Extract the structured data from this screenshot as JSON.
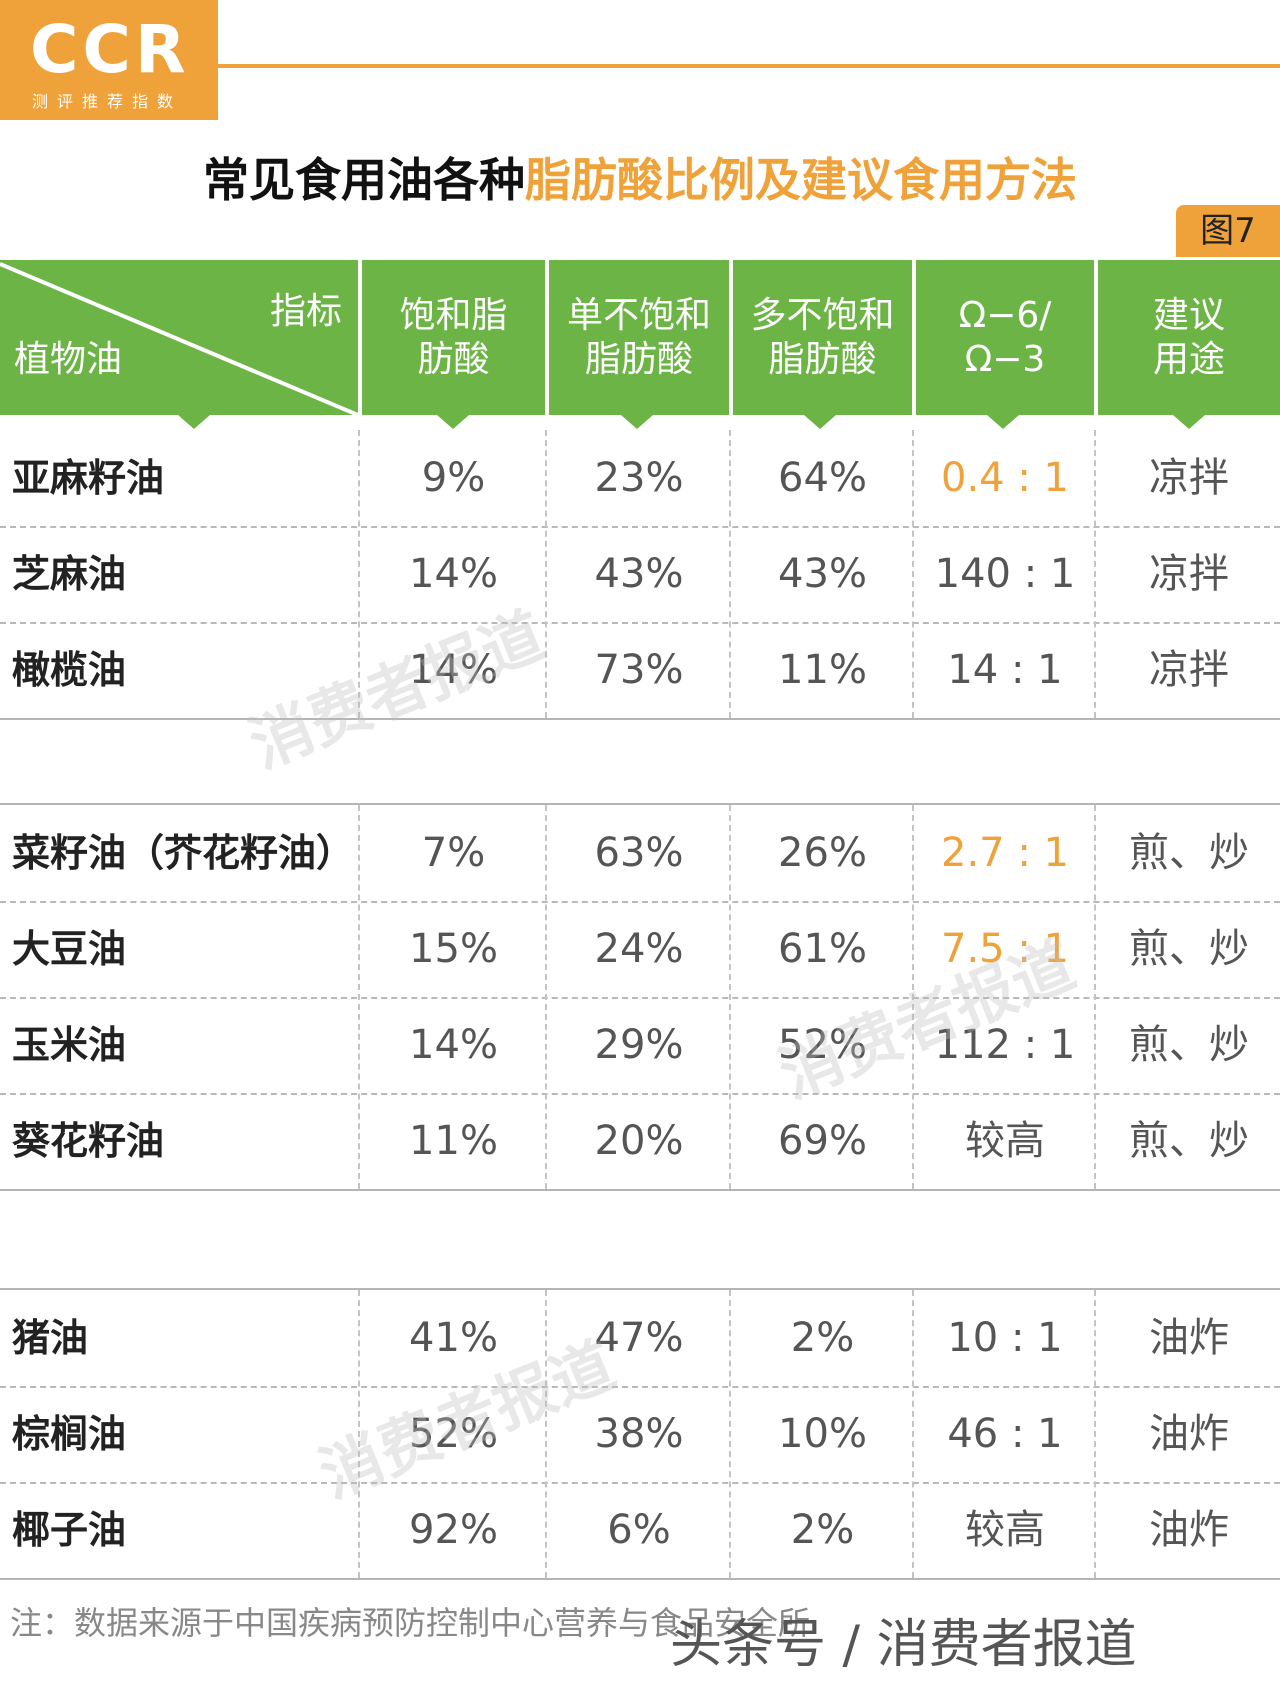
{
  "logo": {
    "brand": "CCR",
    "subtitle": "测评推荐指数"
  },
  "title": {
    "part1": "常见食用油各种",
    "part2": "脂肪酸比例及建议食用方法"
  },
  "figure_tag": "图7",
  "table": {
    "corner": {
      "top": "指标",
      "bottom": "植物油"
    },
    "columns": [
      "饱和脂\n肪酸",
      "单不饱和\n脂肪酸",
      "多不饱和\n脂肪酸",
      "Ω−6/\nΩ−3",
      "建议\n用途"
    ],
    "groups": [
      [
        {
          "name": "亚麻籽油",
          "sat": "9%",
          "mono": "23%",
          "poly": "64%",
          "ratio": "0.4 : 1",
          "ratio_highlight": true,
          "use": "凉拌"
        },
        {
          "name": "芝麻油",
          "sat": "14%",
          "mono": "43%",
          "poly": "43%",
          "ratio": "140 : 1",
          "ratio_highlight": false,
          "use": "凉拌"
        },
        {
          "name": "橄榄油",
          "sat": "14%",
          "mono": "73%",
          "poly": "11%",
          "ratio": "14 : 1",
          "ratio_highlight": false,
          "use": "凉拌"
        }
      ],
      [
        {
          "name": "菜籽油（芥花籽油）",
          "sat": "7%",
          "mono": "63%",
          "poly": "26%",
          "ratio": "2.7 : 1",
          "ratio_highlight": true,
          "use": "煎、炒"
        },
        {
          "name": "大豆油",
          "sat": "15%",
          "mono": "24%",
          "poly": "61%",
          "ratio": "7.5 : 1",
          "ratio_highlight": true,
          "use": "煎、炒"
        },
        {
          "name": "玉米油",
          "sat": "14%",
          "mono": "29%",
          "poly": "52%",
          "ratio": "112 : 1",
          "ratio_highlight": false,
          "use": "煎、炒"
        },
        {
          "name": "葵花籽油",
          "sat": "11%",
          "mono": "20%",
          "poly": "69%",
          "ratio": "较高",
          "ratio_highlight": false,
          "use": "煎、炒"
        }
      ],
      [
        {
          "name": "猪油",
          "sat": "41%",
          "mono": "47%",
          "poly": "2%",
          "ratio": "10 : 1",
          "ratio_highlight": false,
          "use": "油炸"
        },
        {
          "name": "棕榈油",
          "sat": "52%",
          "mono": "38%",
          "poly": "10%",
          "ratio": "46 : 1",
          "ratio_highlight": false,
          "use": "油炸"
        },
        {
          "name": "椰子油",
          "sat": "92%",
          "mono": "6%",
          "poly": "2%",
          "ratio": "较高",
          "ratio_highlight": false,
          "use": "油炸"
        }
      ]
    ]
  },
  "watermark": "消费者报道",
  "note": "注：数据来源于中国疾病预防控制中心营养与食品安全所",
  "credit": "头条号 / 消费者报道",
  "colors": {
    "accent": "#f0a23a",
    "header_green": "#6db446"
  }
}
